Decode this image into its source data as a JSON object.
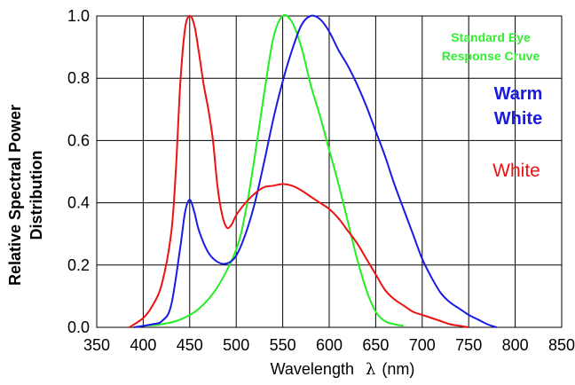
{
  "chart_data": {
    "type": "line",
    "xlabel": "Wavelength",
    "xlabel_symbol": "λ",
    "xlabel_unit": "(nm)",
    "ylabel_lines": [
      "Relative Spectral Power",
      "Distribution"
    ],
    "xlim": [
      350,
      850
    ],
    "ylim": [
      0,
      1.0
    ],
    "x_ticks": [
      "350",
      "400",
      "450",
      "500",
      "550",
      "600",
      "650",
      "700",
      "750",
      "800",
      "850"
    ],
    "y_ticks": [
      "0.0",
      "0.2",
      "0.4",
      "0.6",
      "0.8",
      "1.0"
    ],
    "grid": true,
    "annotations": [
      {
        "lines": [
          "Standard Eye",
          "Response Cruve"
        ],
        "color": "#33ee33"
      },
      {
        "lines": [
          "Warm",
          "White"
        ],
        "color": "#1a1ae6"
      },
      {
        "lines": [
          "White"
        ],
        "color": "#ee1111"
      }
    ],
    "series": [
      {
        "color": "#22ee22",
        "points": [
          [
            400,
            0.005
          ],
          [
            420,
            0.01
          ],
          [
            440,
            0.025
          ],
          [
            460,
            0.06
          ],
          [
            480,
            0.13
          ],
          [
            500,
            0.25
          ],
          [
            510,
            0.37
          ],
          [
            520,
            0.55
          ],
          [
            530,
            0.75
          ],
          [
            540,
            0.93
          ],
          [
            550,
            1.0
          ],
          [
            560,
            0.98
          ],
          [
            570,
            0.9
          ],
          [
            580,
            0.78
          ],
          [
            590,
            0.68
          ],
          [
            600,
            0.57
          ],
          [
            610,
            0.46
          ],
          [
            620,
            0.34
          ],
          [
            630,
            0.22
          ],
          [
            640,
            0.12
          ],
          [
            650,
            0.05
          ],
          [
            660,
            0.02
          ],
          [
            670,
            0.01
          ],
          [
            680,
            0.005
          ]
        ]
      },
      {
        "color": "#1a1ae6",
        "points": [
          [
            390,
            0.0
          ],
          [
            410,
            0.01
          ],
          [
            420,
            0.02
          ],
          [
            430,
            0.07
          ],
          [
            440,
            0.26
          ],
          [
            445,
            0.37
          ],
          [
            450,
            0.41
          ],
          [
            455,
            0.37
          ],
          [
            460,
            0.31
          ],
          [
            470,
            0.24
          ],
          [
            480,
            0.21
          ],
          [
            490,
            0.205
          ],
          [
            500,
            0.23
          ],
          [
            510,
            0.3
          ],
          [
            520,
            0.4
          ],
          [
            530,
            0.53
          ],
          [
            540,
            0.67
          ],
          [
            550,
            0.79
          ],
          [
            560,
            0.89
          ],
          [
            570,
            0.97
          ],
          [
            580,
            1.0
          ],
          [
            590,
            0.99
          ],
          [
            600,
            0.95
          ],
          [
            610,
            0.89
          ],
          [
            620,
            0.84
          ],
          [
            630,
            0.78
          ],
          [
            640,
            0.71
          ],
          [
            650,
            0.63
          ],
          [
            660,
            0.55
          ],
          [
            670,
            0.46
          ],
          [
            680,
            0.38
          ],
          [
            690,
            0.3
          ],
          [
            700,
            0.22
          ],
          [
            710,
            0.16
          ],
          [
            720,
            0.11
          ],
          [
            730,
            0.08
          ],
          [
            740,
            0.06
          ],
          [
            750,
            0.04
          ],
          [
            760,
            0.025
          ],
          [
            770,
            0.01
          ],
          [
            780,
            0.0
          ]
        ]
      },
      {
        "color": "#ee1111",
        "points": [
          [
            385,
            0.0
          ],
          [
            400,
            0.03
          ],
          [
            410,
            0.07
          ],
          [
            420,
            0.14
          ],
          [
            430,
            0.3
          ],
          [
            435,
            0.5
          ],
          [
            440,
            0.79
          ],
          [
            445,
            0.96
          ],
          [
            450,
            1.0
          ],
          [
            455,
            0.97
          ],
          [
            460,
            0.88
          ],
          [
            465,
            0.78
          ],
          [
            470,
            0.7
          ],
          [
            475,
            0.6
          ],
          [
            480,
            0.45
          ],
          [
            485,
            0.36
          ],
          [
            490,
            0.32
          ],
          [
            495,
            0.33
          ],
          [
            500,
            0.36
          ],
          [
            510,
            0.4
          ],
          [
            520,
            0.43
          ],
          [
            530,
            0.45
          ],
          [
            540,
            0.455
          ],
          [
            550,
            0.46
          ],
          [
            560,
            0.455
          ],
          [
            570,
            0.44
          ],
          [
            580,
            0.42
          ],
          [
            590,
            0.4
          ],
          [
            600,
            0.38
          ],
          [
            610,
            0.35
          ],
          [
            620,
            0.31
          ],
          [
            630,
            0.27
          ],
          [
            640,
            0.22
          ],
          [
            650,
            0.17
          ],
          [
            660,
            0.12
          ],
          [
            670,
            0.09
          ],
          [
            680,
            0.07
          ],
          [
            690,
            0.05
          ],
          [
            700,
            0.04
          ],
          [
            710,
            0.03
          ],
          [
            720,
            0.02
          ],
          [
            730,
            0.01
          ],
          [
            740,
            0.005
          ],
          [
            750,
            0.0
          ]
        ]
      }
    ]
  }
}
